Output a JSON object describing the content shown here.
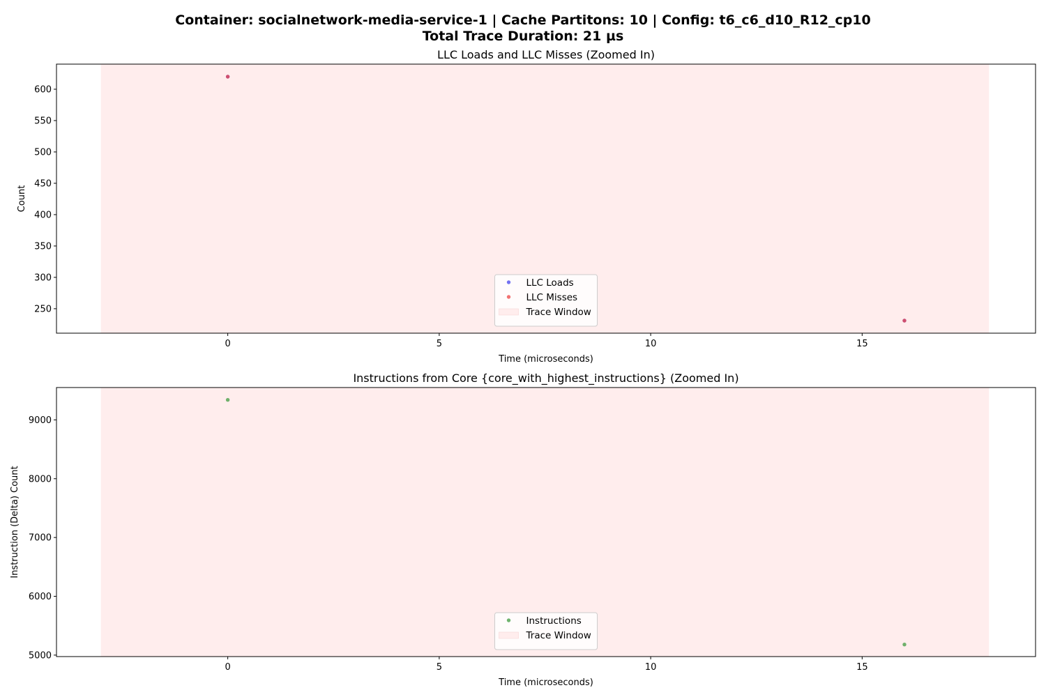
{
  "figure": {
    "title_line1": "Container: socialnetwork-media-service-1 | Cache Partitons: 10 | Config: t6_c6_d10_R12_cp10",
    "title_line2": "Total Trace Duration: 21 µs"
  },
  "chart_data": [
    {
      "type": "scatter",
      "title": "LLC Loads and LLC Misses (Zoomed In)",
      "xlabel": "Time (microseconds)",
      "ylabel": "Count",
      "xlim": [
        -4.05,
        19.1
      ],
      "ylim": [
        211,
        640
      ],
      "xticks": [
        0,
        5,
        10,
        15
      ],
      "yticks": [
        250,
        300,
        350,
        400,
        450,
        500,
        550,
        600
      ],
      "span": {
        "name": "Trace Window",
        "x0": -3,
        "x1": 18,
        "color": "#ffeded"
      },
      "series": [
        {
          "name": "LLC Loads",
          "color": "#4444ee",
          "points": [
            {
              "x": 0,
              "y": 620
            },
            {
              "x": 16,
              "y": 231
            }
          ]
        },
        {
          "name": "LLC Misses",
          "color": "#ee4444",
          "points": [
            {
              "x": 0,
              "y": 620
            },
            {
              "x": 16,
              "y": 231
            }
          ]
        }
      ],
      "grid": false,
      "legend": "bottom-center"
    },
    {
      "type": "scatter",
      "title": "Instructions from Core {core_with_highest_instructions} (Zoomed In)",
      "xlabel": "Time (microseconds)",
      "ylabel": "Instruction (Delta) Count",
      "xlim": [
        -4.05,
        19.1
      ],
      "ylim": [
        4975,
        9550
      ],
      "xticks": [
        0,
        5,
        10,
        15
      ],
      "yticks": [
        5000,
        6000,
        7000,
        8000,
        9000
      ],
      "span": {
        "name": "Trace Window",
        "x0": -3,
        "x1": 18,
        "color": "#ffeded"
      },
      "series": [
        {
          "name": "Instructions",
          "color": "#3f9b3f",
          "points": [
            {
              "x": 0,
              "y": 9340
            },
            {
              "x": 16,
              "y": 5180
            }
          ]
        }
      ],
      "grid": false,
      "legend": "bottom-center"
    }
  ]
}
